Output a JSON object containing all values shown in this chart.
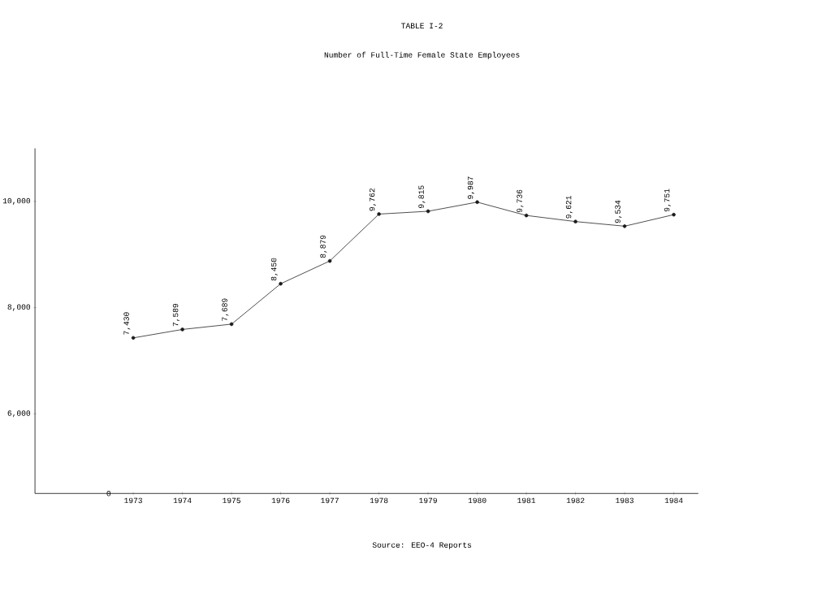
{
  "chart_data": {
    "type": "line",
    "title": "TABLE I-2",
    "subtitle": "Number of Full-Time Female State Employees",
    "categories": [
      "1973",
      "1974",
      "1975",
      "1976",
      "1977",
      "1978",
      "1979",
      "1980",
      "1981",
      "1982",
      "1983",
      "1984"
    ],
    "values": [
      7430,
      7589,
      7689,
      8450,
      8879,
      9762,
      9815,
      9987,
      9736,
      9621,
      9534,
      9751
    ],
    "value_labels": [
      "7,430",
      "7,589",
      "7,689",
      "8,450",
      "8,879",
      "9,762",
      "9,815",
      "9,987",
      "9,736",
      "9,621",
      "9,534",
      "9,751"
    ],
    "color": "#1a1a1a",
    "marker": "circle",
    "line_style": "solid",
    "grid": false,
    "ylim": [
      4500,
      11000
    ],
    "yticks": [
      {
        "value": 6000,
        "label": "6,000"
      },
      {
        "value": 8000,
        "label": "8,000"
      },
      {
        "value": 10000,
        "label": "10,000"
      }
    ],
    "annotations": [
      "0",
      "Source:  EEO-4 Reports"
    ]
  }
}
